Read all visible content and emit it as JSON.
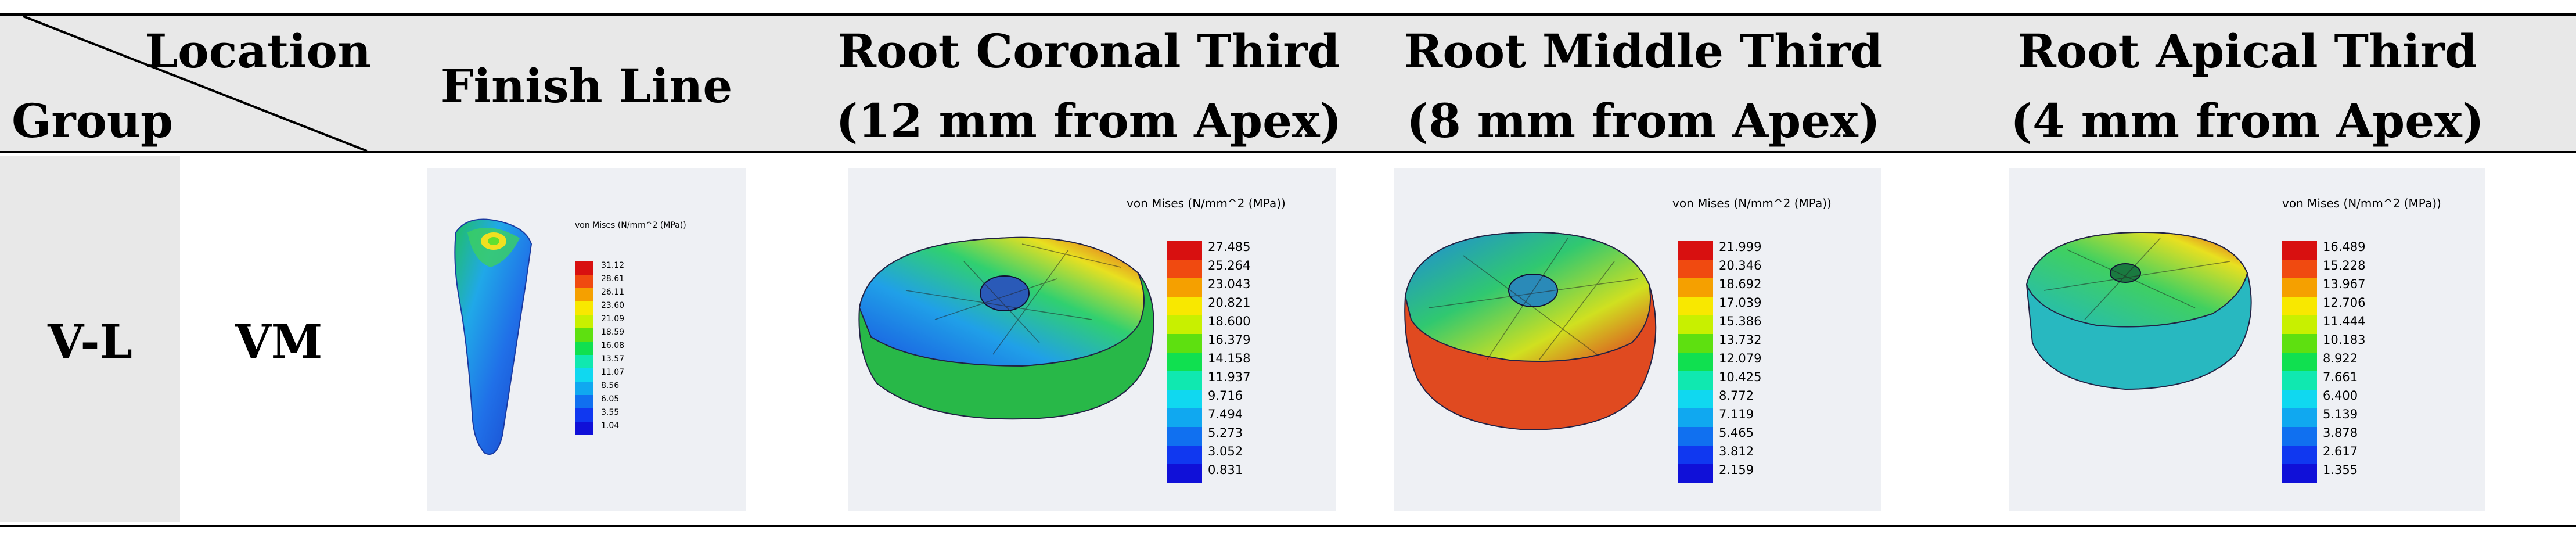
{
  "header": {
    "corner_top": "Location",
    "corner_bottom": "Group",
    "columns": [
      {
        "line1": "Finish Line",
        "line2": ""
      },
      {
        "line1": "Root Coronal Third",
        "line2": "(12 mm from Apex)"
      },
      {
        "line1": "Root Middle Third",
        "line2": "(8 mm from Apex)"
      },
      {
        "line1": "Root Apical Third",
        "line2": "(4 mm from Apex)"
      }
    ]
  },
  "row": {
    "group": "V-L",
    "location": "VM"
  },
  "legend_colors": [
    "#d81010",
    "#f04a10",
    "#f5a000",
    "#f8e800",
    "#c8f000",
    "#5ee010",
    "#10e050",
    "#10e8b0",
    "#10d8f0",
    "#10a8f0",
    "#1070f0",
    "#1038f0",
    "#1010d8"
  ],
  "panels": [
    {
      "title": "von Mises (N/mm^2 (MPa))",
      "ticks": [
        "31.12",
        "28.61",
        "26.11",
        "23.60",
        "21.09",
        "18.59",
        "16.08",
        "13.57",
        "11.07",
        "8.56",
        "6.05",
        "3.55",
        "1.04"
      ]
    },
    {
      "title": "von Mises (N/mm^2 (MPa))",
      "ticks": [
        "27.485",
        "25.264",
        "23.043",
        "20.821",
        "18.600",
        "16.379",
        "14.158",
        "11.937",
        "9.716",
        "7.494",
        "5.273",
        "3.052",
        "0.831"
      ]
    },
    {
      "title": "von Mises (N/mm^2 (MPa))",
      "ticks": [
        "21.999",
        "20.346",
        "18.692",
        "17.039",
        "15.386",
        "13.732",
        "12.079",
        "10.425",
        "8.772",
        "7.119",
        "5.465",
        "3.812",
        "2.159"
      ]
    },
    {
      "title": "von Mises (N/mm^2 (MPa))",
      "ticks": [
        "16.489",
        "15.228",
        "13.967",
        "12.706",
        "11.444",
        "10.183",
        "8.922",
        "7.661",
        "6.400",
        "5.139",
        "3.878",
        "2.617",
        "1.355"
      ]
    }
  ]
}
